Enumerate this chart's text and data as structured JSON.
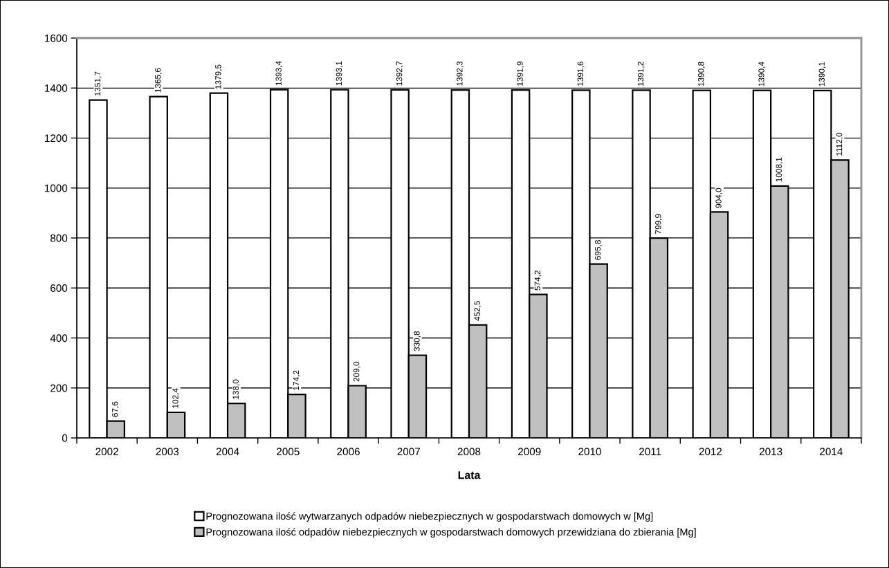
{
  "chart_data": {
    "type": "bar",
    "xlabel": "Lata",
    "categories": [
      "2002",
      "2003",
      "2004",
      "2005",
      "2006",
      "2007",
      "2008",
      "2009",
      "2010",
      "2011",
      "2012",
      "2013",
      "2014"
    ],
    "series": [
      {
        "name": "Prognozowana ilość wytwarzanych odpadów niebezpiecznych w gospodarstwach domowych w [Mg]",
        "color": "#ffffff",
        "values": [
          1351.7,
          1365.6,
          1379.5,
          1393.4,
          1393.1,
          1392.7,
          1392.3,
          1391.9,
          1391.6,
          1391.2,
          1390.8,
          1390.4,
          1390.1
        ],
        "value_labels": [
          "1351,7",
          "1365,6",
          "1379,5",
          "1393,4",
          "1393,1",
          "1392,7",
          "1392,3",
          "1391,9",
          "1391,6",
          "1391,2",
          "1390,8",
          "1390,4",
          "1390,1"
        ]
      },
      {
        "name": "Prognozowana ilość odpadów niebezpiecznych w gospodarstwach domowych przewidziana do zbierania [Mg]",
        "color": "#c0c0c0",
        "values": [
          67.6,
          102.4,
          138.0,
          174.2,
          209.0,
          330.8,
          452.5,
          574.2,
          695.8,
          799.9,
          904.0,
          1008.1,
          1112.0
        ],
        "value_labels": [
          "67,6",
          "102,4",
          "138,0",
          "174,2",
          "209,0",
          "330,8",
          "452,5",
          "574,2",
          "695,8",
          "799,9",
          "904,0",
          "1008,1",
          "1112,0"
        ]
      }
    ],
    "ylim": [
      0,
      1600
    ],
    "yticks": [
      0,
      200,
      400,
      600,
      800,
      1000,
      1200,
      1400,
      1600
    ],
    "grid": "y",
    "legend": "bottom"
  }
}
